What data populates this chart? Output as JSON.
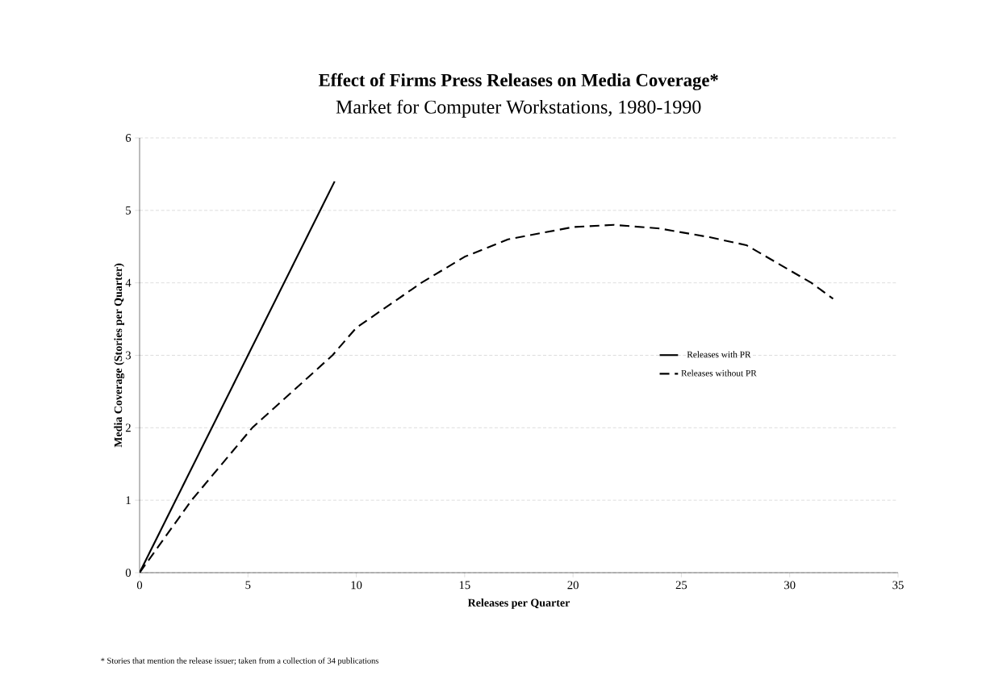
{
  "chart_data": {
    "type": "line",
    "title": "Effect of Firms Press Releases on Media Coverage*",
    "subtitle": "Market for Computer Workstations, 1980-1990",
    "xlabel": "Releases per Quarter",
    "ylabel": "Media Coverage (Stories per Quarter)",
    "annotations": [
      "* Stories that mention the release issuer; taken from a collection of 34 publications"
    ],
    "xlim": [
      0,
      35
    ],
    "xticks": [
      0,
      5,
      10,
      15,
      20,
      25,
      30,
      35
    ],
    "ylim": [
      0,
      6
    ],
    "yticks": [
      0,
      1,
      2,
      3,
      4,
      5,
      6
    ],
    "grid": "y",
    "legend": "right",
    "marker": "none",
    "series": [
      {
        "name": "Releases with PR",
        "color": "#000000",
        "line_style": "solid",
        "x": [
          0,
          9
        ],
        "values": [
          0,
          5.4
        ]
      },
      {
        "name": "Releases without PR",
        "color": "#000000",
        "line_style": "dashed",
        "x": [
          0,
          2.4,
          5.2,
          8.9,
          10,
          13,
          15,
          17,
          20,
          21.9,
          24,
          26.3,
          28,
          31,
          32
        ],
        "values": [
          0,
          1,
          2,
          3,
          3.38,
          4,
          4.36,
          4.6,
          4.77,
          4.8,
          4.75,
          4.63,
          4.52,
          4,
          3.78
        ]
      }
    ]
  }
}
